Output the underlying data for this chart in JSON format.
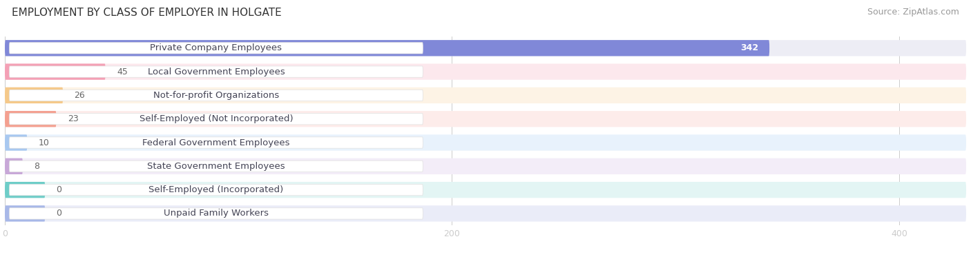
{
  "title": "EMPLOYMENT BY CLASS OF EMPLOYER IN HOLGATE",
  "source": "Source: ZipAtlas.com",
  "categories": [
    "Private Company Employees",
    "Local Government Employees",
    "Not-for-profit Organizations",
    "Self-Employed (Not Incorporated)",
    "Federal Government Employees",
    "State Government Employees",
    "Self-Employed (Incorporated)",
    "Unpaid Family Workers"
  ],
  "values": [
    342,
    45,
    26,
    23,
    10,
    8,
    0,
    0
  ],
  "bar_colors": [
    "#8088d8",
    "#f4a0b5",
    "#f5c98a",
    "#f4a090",
    "#a8c8f0",
    "#c8a8d8",
    "#6ecdc8",
    "#a8b8e8"
  ],
  "bar_bg_colors": [
    "#ededf5",
    "#fce8ed",
    "#fdf3e5",
    "#fdecea",
    "#e8f2fc",
    "#f3edf8",
    "#e3f5f4",
    "#eaecf8"
  ],
  "zero_bar_width": 18,
  "xlim_max": 430,
  "xticks": [
    0,
    200,
    400
  ],
  "background_color": "#ffffff",
  "title_fontsize": 11,
  "source_fontsize": 9,
  "label_fontsize": 9.5,
  "value_fontsize": 9
}
